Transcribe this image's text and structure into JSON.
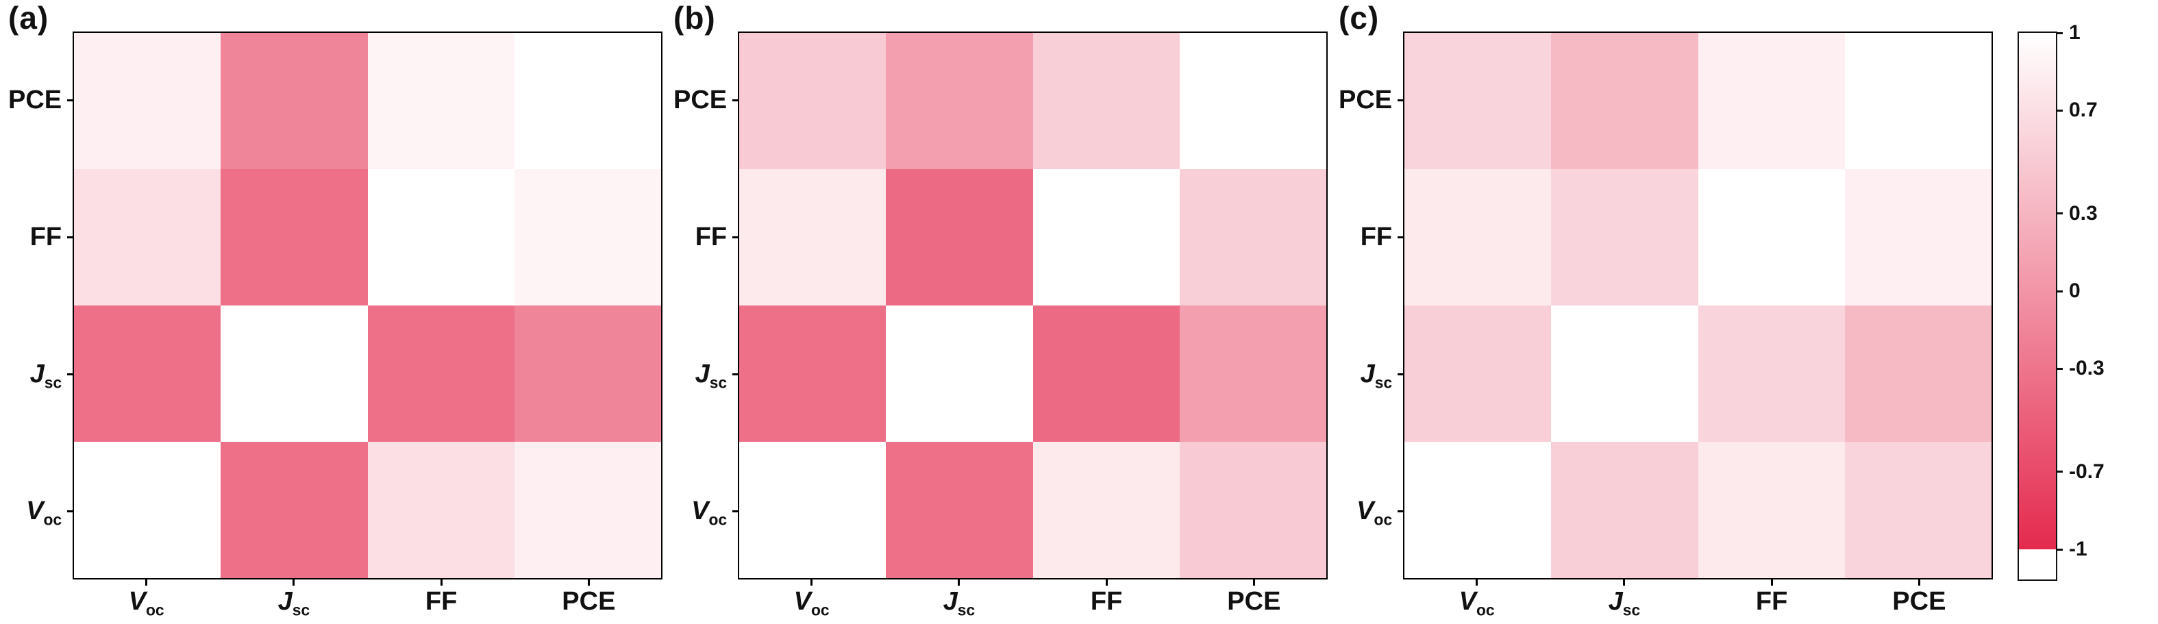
{
  "figure": {
    "background": "#ffffff",
    "text_color": "#111111"
  },
  "panels": [
    {
      "label": "(a)"
    },
    {
      "label": "(b)"
    },
    {
      "label": "(c)"
    }
  ],
  "axis_label_defs": {
    "Voc": {
      "main": "V",
      "sub": "oc",
      "italic": true
    },
    "Jsc": {
      "main": "J",
      "sub": "sc",
      "italic": true
    },
    "FF": {
      "main": "FF",
      "sub": "",
      "italic": false
    },
    "PCE": {
      "main": "PCE",
      "sub": "",
      "italic": false
    }
  },
  "colorbar": {
    "tick_labels": [
      "1",
      "0.7",
      "0.3",
      "0",
      "-0.3",
      "-0.7",
      "-1"
    ],
    "tick_values": [
      1,
      0.7,
      0.3,
      0,
      -0.3,
      -0.7,
      -1
    ],
    "max_color": "#ffffff",
    "min_color": "#e42a4e",
    "range": [
      -1,
      1
    ],
    "orientation": "vertical",
    "position": "right"
  },
  "chart_data": [
    {
      "type": "heatmap",
      "panel": "(a)",
      "x_categories": [
        "Voc",
        "Jsc",
        "FF",
        "PCE"
      ],
      "y_categories_top_to_bottom": [
        "PCE",
        "FF",
        "Jsc",
        "Voc"
      ],
      "colormap": "white at r=1 grading to red at r=-1",
      "values_rows_top_to_bottom": [
        [
          0.85,
          -0.15,
          0.9,
          1.0
        ],
        [
          0.7,
          -0.35,
          1.0,
          0.9
        ],
        [
          -0.35,
          1.0,
          -0.35,
          -0.15
        ],
        [
          1.0,
          -0.35,
          0.7,
          0.85
        ]
      ]
    },
    {
      "type": "heatmap",
      "panel": "(b)",
      "x_categories": [
        "Voc",
        "Jsc",
        "FF",
        "PCE"
      ],
      "y_categories_top_to_bottom": [
        "PCE",
        "FF",
        "Jsc",
        "Voc"
      ],
      "colormap": "white at r=1 grading to red at r=-1",
      "values_rows_top_to_bottom": [
        [
          0.5,
          0.1,
          0.55,
          1.0
        ],
        [
          0.8,
          -0.4,
          1.0,
          0.55
        ],
        [
          -0.35,
          1.0,
          -0.4,
          0.1
        ],
        [
          1.0,
          -0.35,
          0.8,
          0.5
        ]
      ]
    },
    {
      "type": "heatmap",
      "panel": "(c)",
      "x_categories": [
        "Voc",
        "Jsc",
        "FF",
        "PCE"
      ],
      "y_categories_top_to_bottom": [
        "PCE",
        "FF",
        "Jsc",
        "Voc"
      ],
      "colormap": "white at r=1 grading to red at r=-1",
      "values_rows_top_to_bottom": [
        [
          0.6,
          0.35,
          0.85,
          1.0
        ],
        [
          0.8,
          0.6,
          1.0,
          0.85
        ],
        [
          0.55,
          1.0,
          0.6,
          0.35
        ],
        [
          1.0,
          0.55,
          0.8,
          0.6
        ]
      ]
    }
  ]
}
